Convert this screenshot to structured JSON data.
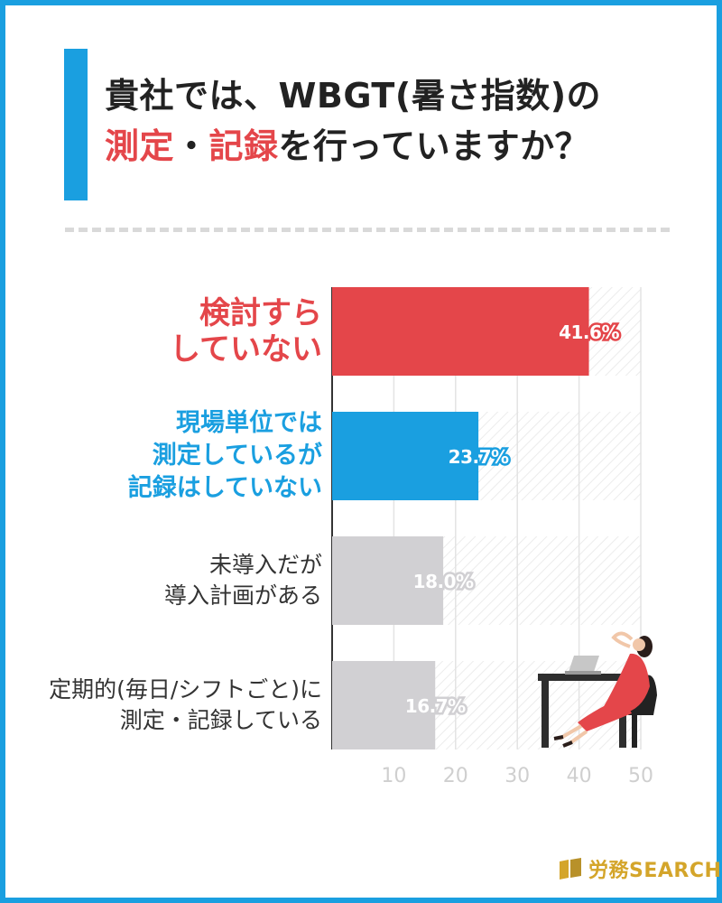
{
  "title": {
    "line1": "貴社では、WBGT(暑さ指数)の",
    "line2_part1": "測定",
    "line2_sep": "・",
    "line2_part2": "記録",
    "line2_rest": "を行っていますか？"
  },
  "colors": {
    "accent_blue": "#1a9fe0",
    "accent_red": "#e4464a",
    "gray_bar": "#d1d0d3",
    "gold": "#d4a52a"
  },
  "chart_data": {
    "type": "bar",
    "orientation": "horizontal",
    "categories": [
      "検討すらしていない",
      "現場単位では測定しているが記録はしていない",
      "未導入だが導入計画がある",
      "定期的(毎日/シフトごと)に測定・記録している"
    ],
    "category_lines": [
      [
        "検討すら",
        "していない"
      ],
      [
        "現場単位では",
        "測定しているが",
        "記録はしていない"
      ],
      [
        "未導入だが",
        "導入計画がある"
      ],
      [
        "定期的(毎日/シフトごと)に",
        "測定・記録している"
      ]
    ],
    "values": [
      41.6,
      23.7,
      18.0,
      16.7
    ],
    "value_labels": [
      "41.6%",
      "23.7%",
      "18.0%",
      "16.7%"
    ],
    "bar_colors": [
      "#e4464a",
      "#1a9fe0",
      "#d1d0d3",
      "#d1d0d3"
    ],
    "label_colors": [
      "#e4464a",
      "#1a9fe0",
      "#333333",
      "#333333"
    ],
    "xlim": [
      0,
      50
    ],
    "xticks": [
      10,
      20,
      30,
      40,
      50
    ],
    "grid": true,
    "xlabel": "",
    "ylabel": ""
  },
  "logo": {
    "text": "労務SEARCH",
    "icon": "book-icon"
  }
}
